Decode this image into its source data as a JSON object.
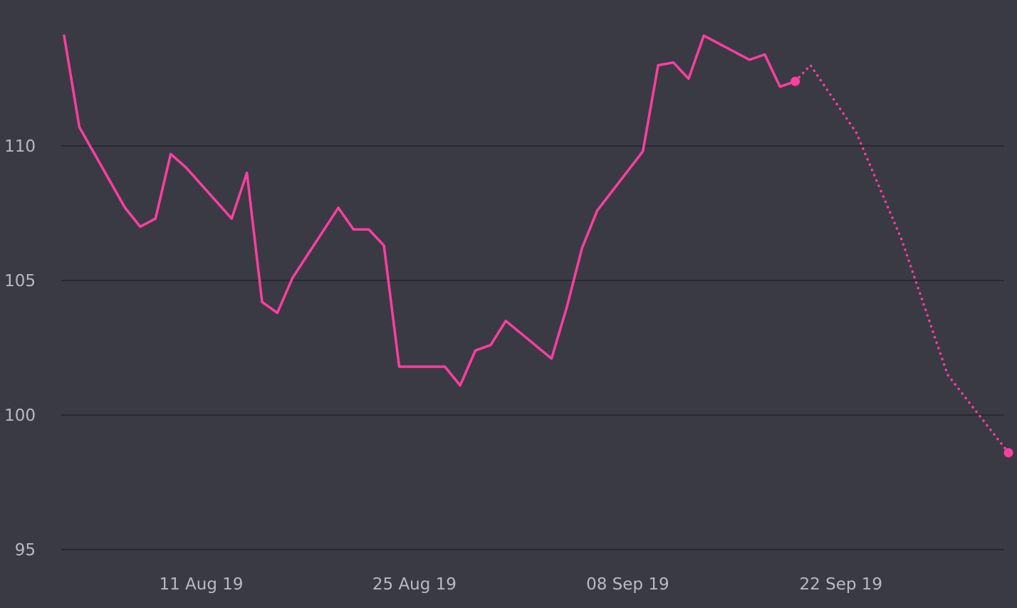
{
  "colors": {
    "background": "#3a3a45",
    "grid": "#23232b",
    "line": "#ff3ea0",
    "tick_text": "#b9b9c4"
  },
  "chart_data": {
    "type": "line",
    "title": "",
    "xlabel": "",
    "ylabel": "",
    "xlim": [
      "2019-08-02",
      "2019-10-05"
    ],
    "ylim": [
      95,
      115
    ],
    "yticks": [
      95,
      100,
      105,
      110
    ],
    "xticks": [
      "2019-08-11",
      "2019-08-25",
      "2019-09-08",
      "2019-09-22"
    ],
    "xtick_labels": [
      "11 Aug 19",
      "25 Aug 19",
      "08 Sep 19",
      "22 Sep 19"
    ],
    "grid": "horizontal",
    "legend": "none",
    "series": [
      {
        "style": "solid",
        "end_marker": true,
        "points": [
          [
            "2019-08-02",
            114.1
          ],
          [
            "2019-08-03",
            110.7
          ],
          [
            "2019-08-06",
            107.7
          ],
          [
            "2019-08-07",
            107.0
          ],
          [
            "2019-08-08",
            107.3
          ],
          [
            "2019-08-09",
            109.7
          ],
          [
            "2019-08-10",
            109.2
          ],
          [
            "2019-08-13",
            107.3
          ],
          [
            "2019-08-14",
            109.0
          ],
          [
            "2019-08-15",
            104.2
          ],
          [
            "2019-08-16",
            103.8
          ],
          [
            "2019-08-17",
            105.1
          ],
          [
            "2019-08-20",
            107.7
          ],
          [
            "2019-08-21",
            106.9
          ],
          [
            "2019-08-22",
            106.9
          ],
          [
            "2019-08-23",
            106.3
          ],
          [
            "2019-08-24",
            101.8
          ],
          [
            "2019-08-27",
            101.8
          ],
          [
            "2019-08-28",
            101.1
          ],
          [
            "2019-08-29",
            102.4
          ],
          [
            "2019-08-30",
            102.6
          ],
          [
            "2019-08-31",
            103.5
          ],
          [
            "2019-09-03",
            102.1
          ],
          [
            "2019-09-04",
            104.0
          ],
          [
            "2019-09-05",
            106.2
          ],
          [
            "2019-09-06",
            107.6
          ],
          [
            "2019-09-09",
            109.8
          ],
          [
            "2019-09-10",
            113.0
          ],
          [
            "2019-09-11",
            113.1
          ],
          [
            "2019-09-12",
            112.5
          ],
          [
            "2019-09-13",
            114.1
          ],
          [
            "2019-09-16",
            113.2
          ],
          [
            "2019-09-17",
            113.4
          ],
          [
            "2019-09-18",
            112.2
          ],
          [
            "2019-09-19",
            112.4
          ]
        ]
      },
      {
        "style": "dotted",
        "end_marker": true,
        "points": [
          [
            "2019-09-19",
            112.4
          ],
          [
            "2019-09-20",
            113.0
          ],
          [
            "2019-09-23",
            110.5
          ],
          [
            "2019-09-26",
            106.5
          ],
          [
            "2019-09-29",
            101.5
          ],
          [
            "2019-10-03",
            98.6
          ]
        ]
      }
    ]
  }
}
